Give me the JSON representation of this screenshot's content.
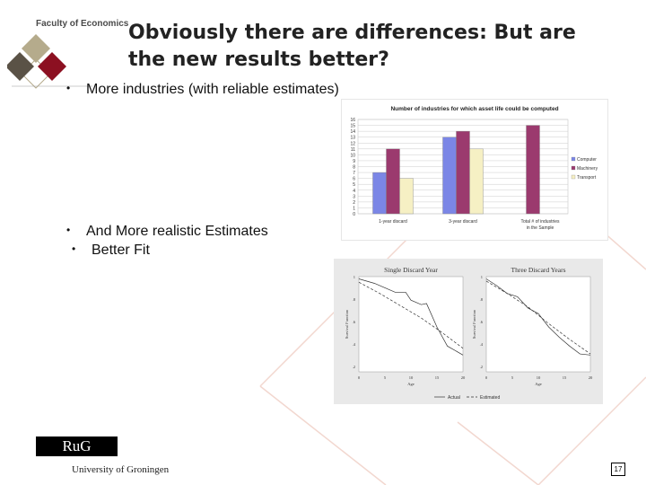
{
  "header": {
    "faculty": "Faculty of Economics",
    "title_line1": "Obviously there are differences: But are",
    "title_line2": "the new results better?"
  },
  "bullets": [
    "More industries (with reliable estimates)",
    "And More realistic Estimates",
    "Better Fit"
  ],
  "colors": {
    "computer": "#7b86e6",
    "machinery": "#9b3a6e",
    "transport": "#f6f0c4",
    "total": "#7a0d16",
    "logo_dark": "#5a5246",
    "logo_red": "#8c1021",
    "logo_tan": "#b5ab8c",
    "accent_lines": "#f2d7cf"
  },
  "chart_data": [
    {
      "type": "bar",
      "title": "Number of industries for which asset life could be computed",
      "categories": [
        "1-year discard",
        "3-year discard",
        "Total # of industries in the Sample"
      ],
      "series": [
        {
          "name": "Computer",
          "values": [
            7,
            13,
            0
          ]
        },
        {
          "name": "Machinery",
          "values": [
            11,
            14,
            15
          ]
        },
        {
          "name": "Transport",
          "values": [
            6,
            11,
            0
          ]
        }
      ],
      "ylim": [
        0,
        16
      ],
      "yticks": [
        0,
        1,
        2,
        3,
        4,
        5,
        6,
        7,
        8,
        9,
        10,
        11,
        12,
        13,
        14,
        15,
        16
      ],
      "legend": "right"
    },
    {
      "type": "line",
      "title": "Single Discard Year",
      "xlabel": "Age",
      "ylabel": "Survival Function",
      "xticks": [
        "0",
        "5",
        "10",
        "15",
        "20"
      ],
      "yticks": [
        "1",
        ".8",
        ".6",
        ".4",
        ".2"
      ],
      "xlim": [
        0,
        20
      ],
      "ylim": [
        0.15,
        1
      ],
      "series": [
        {
          "name": "Actual",
          "x": [
            0,
            3,
            5,
            7,
            9,
            10,
            12,
            13,
            15,
            17,
            20
          ],
          "y": [
            0.98,
            0.94,
            0.9,
            0.86,
            0.86,
            0.79,
            0.75,
            0.76,
            0.55,
            0.38,
            0.3
          ]
        },
        {
          "name": "Estimated",
          "x": [
            0,
            4,
            8,
            12,
            16,
            20
          ],
          "y": [
            0.95,
            0.85,
            0.74,
            0.63,
            0.5,
            0.36
          ]
        }
      ]
    },
    {
      "type": "line",
      "title": "Three Discard Years",
      "xlabel": "Age",
      "ylabel": "Survival Function",
      "xticks": [
        "0",
        "5",
        "10",
        "15",
        "20"
      ],
      "yticks": [
        "1",
        ".8",
        ".6",
        ".4",
        ".2"
      ],
      "xlim": [
        0,
        20
      ],
      "ylim": [
        0.15,
        1
      ],
      "series": [
        {
          "name": "Actual",
          "x": [
            0,
            2,
            4,
            6,
            8,
            10,
            12,
            14,
            16,
            18,
            20
          ],
          "y": [
            0.98,
            0.92,
            0.85,
            0.82,
            0.72,
            0.67,
            0.55,
            0.46,
            0.38,
            0.31,
            0.3
          ]
        },
        {
          "name": "Estimated",
          "x": [
            0,
            4,
            8,
            12,
            16,
            20
          ],
          "y": [
            0.96,
            0.85,
            0.73,
            0.58,
            0.44,
            0.31
          ]
        }
      ]
    }
  ],
  "fit_legend": {
    "actual": "Actual",
    "estimated": "Estimated"
  },
  "footer": {
    "logo_text": "RuG",
    "university": "University of Groningen",
    "page_number": "17"
  }
}
